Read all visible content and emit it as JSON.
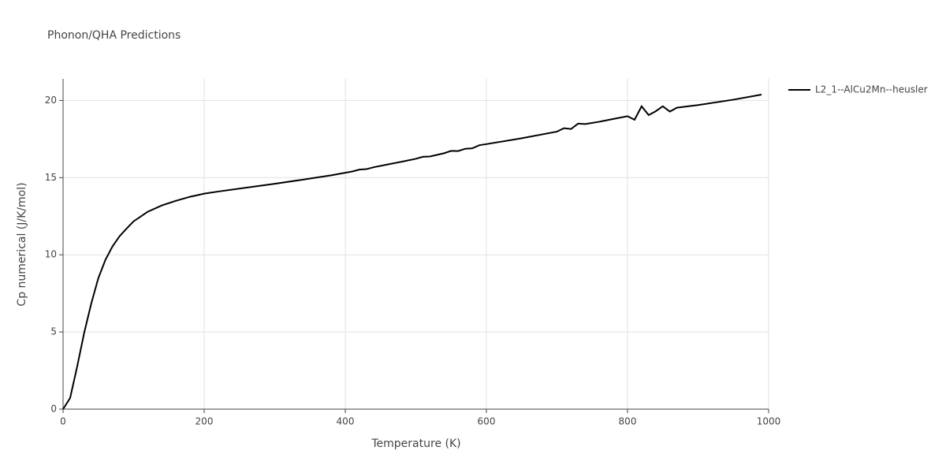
{
  "chart_data": {
    "type": "line",
    "title": "Phonon/QHA Predictions",
    "x_label": "Temperature (K)",
    "y_label": "Cp numerical (J/K/mol)",
    "xlim": [
      0,
      1000
    ],
    "ylim": [
      0,
      21.4
    ],
    "xticks": [
      0,
      200,
      400,
      600,
      800,
      1000
    ],
    "yticks": [
      0,
      5,
      10,
      15,
      20
    ],
    "grid": true,
    "legend": "right",
    "series": [
      {
        "name": "L2_1--AlCu2Mn--heusler",
        "color": "#000000",
        "x": [
          0,
          10,
          20,
          30,
          40,
          50,
          60,
          70,
          80,
          90,
          100,
          110,
          120,
          140,
          160,
          180,
          200,
          220,
          260,
          300,
          340,
          380,
          410,
          420,
          430,
          440,
          460,
          480,
          500,
          510,
          520,
          540,
          550,
          560,
          570,
          580,
          590,
          600,
          650,
          700,
          710,
          720,
          730,
          740,
          760,
          780,
          800,
          810,
          820,
          830,
          840,
          850,
          860,
          870,
          900,
          950,
          990
        ],
        "values": [
          0,
          0.72,
          2.76,
          4.96,
          6.85,
          8.49,
          9.67,
          10.54,
          11.2,
          11.7,
          12.17,
          12.48,
          12.79,
          13.2,
          13.5,
          13.76,
          13.96,
          14.1,
          14.35,
          14.6,
          14.87,
          15.15,
          15.4,
          15.52,
          15.55,
          15.67,
          15.85,
          16.03,
          16.22,
          16.35,
          16.37,
          16.58,
          16.73,
          16.72,
          16.87,
          16.9,
          17.1,
          17.17,
          17.55,
          17.98,
          18.2,
          18.15,
          18.5,
          18.47,
          18.62,
          18.8,
          18.98,
          18.75,
          19.62,
          19.05,
          19.3,
          19.62,
          19.28,
          19.53,
          19.7,
          20.05,
          20.38
        ]
      }
    ]
  }
}
